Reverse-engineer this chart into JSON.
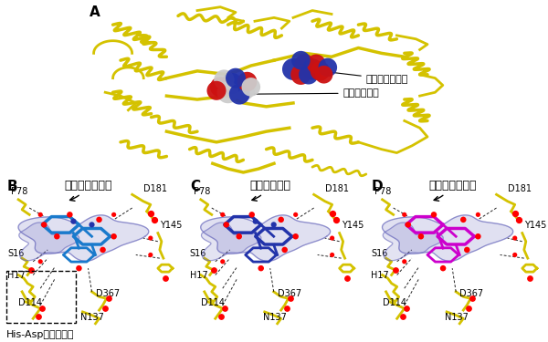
{
  "panel_A_label": "A",
  "panel_B_label": "B",
  "panel_C_label": "C",
  "panel_D_label": "D",
  "ann_delphinidin": "デルフィニジン",
  "ann_nucleotide": "ヌクレオチド",
  "title_B": "デルフィニジン",
  "title_C": "ペチュニジン",
  "title_D": "ケンフェロール",
  "footer_B": "His-Asp触媒二残基",
  "protein_color": "#d4c200",
  "ed_color": "#6666bb",
  "ligand_B_color": "#1a7acc",
  "ligand_C_color": "#2233aa",
  "ligand_D_color": "#cc00cc",
  "bg_color": "#ffffff",
  "label_fs": 11,
  "title_fs": 9,
  "residue_fs": 7,
  "footer_fs": 8,
  "fig_w": 6.0,
  "fig_h": 3.75
}
